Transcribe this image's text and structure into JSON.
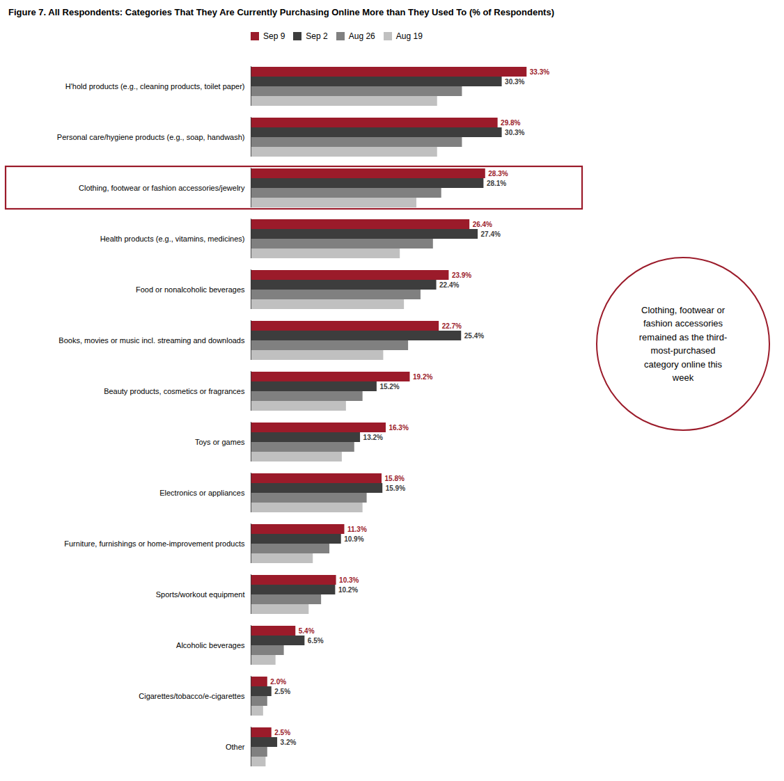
{
  "chart_data": {
    "type": "bar",
    "orientation": "horizontal",
    "title": "Figure 7. All Respondents: Categories That They Are Currently Purchasing Online More than They Used To (% of Respondents)",
    "categories": [
      "H'hold products (e.g., cleaning products, toilet paper)",
      "Personal care/hygiene products (e.g., soap, handwash)",
      "Clothing, footwear or fashion accessories/jewelry",
      "Health products (e.g., vitamins, medicines)",
      "Food or nonalcoholic beverages",
      "Books, movies or music incl. streaming and downloads",
      "Beauty products, cosmetics or fragrances",
      "Toys or games",
      "Electronics or appliances",
      "Furniture, furnishings or home-improvement products",
      "Sports/workout equipment",
      "Alcoholic beverages",
      "Cigarettes/tobacco/e-cigarettes",
      "Other"
    ],
    "series": [
      {
        "name": "Sep 9",
        "color": "#9b1b2a",
        "values": [
          33.3,
          29.8,
          28.3,
          26.4,
          23.9,
          22.7,
          19.2,
          16.3,
          15.8,
          11.3,
          10.3,
          5.4,
          2.0,
          2.5
        ],
        "value_labels": [
          "33.3%",
          "29.8%",
          "28.3%",
          "26.4%",
          "23.9%",
          "22.7%",
          "19.2%",
          "16.3%",
          "15.8%",
          "11.3%",
          "10.3%",
          "5.4%",
          "2.0%",
          "2.5%"
        ],
        "data_labels": true
      },
      {
        "name": "Sep 2",
        "color": "#3d3d3d",
        "values": [
          30.3,
          30.3,
          28.1,
          27.4,
          22.4,
          25.4,
          15.2,
          13.2,
          15.9,
          10.9,
          10.2,
          6.5,
          2.5,
          3.2
        ],
        "value_labels": [
          "30.3%",
          "30.3%",
          "28.1%",
          "27.4%",
          "22.4%",
          "25.4%",
          "15.2%",
          "13.2%",
          "15.9%",
          "10.9%",
          "10.2%",
          "6.5%",
          "2.5%",
          "3.2%"
        ],
        "data_labels": true
      },
      {
        "name": "Aug 26",
        "color": "#808080",
        "values": [
          25.5,
          25.5,
          23.0,
          22.0,
          20.5,
          19.0,
          13.5,
          12.5,
          14.0,
          9.5,
          8.5,
          4.0,
          2.0,
          2.0
        ]
      },
      {
        "name": "Aug 19",
        "color": "#c0c0c0",
        "values": [
          22.5,
          22.5,
          20.0,
          18.0,
          18.5,
          16.0,
          11.5,
          11.0,
          13.5,
          7.5,
          7.0,
          3.0,
          1.5,
          1.8
        ]
      }
    ],
    "xlim": [
      0,
      40
    ],
    "tick_labels": "y",
    "grid": false,
    "legend": "top",
    "annotations": [
      {
        "text": "Clothing, footwear or\nfashion accessories\nremained as the third-\nmost-purchased\ncategory online this\nweek",
        "highlight": "Clothing, footwear or fashion accessories/jewelry",
        "color": "#9b1b2a"
      }
    ]
  }
}
